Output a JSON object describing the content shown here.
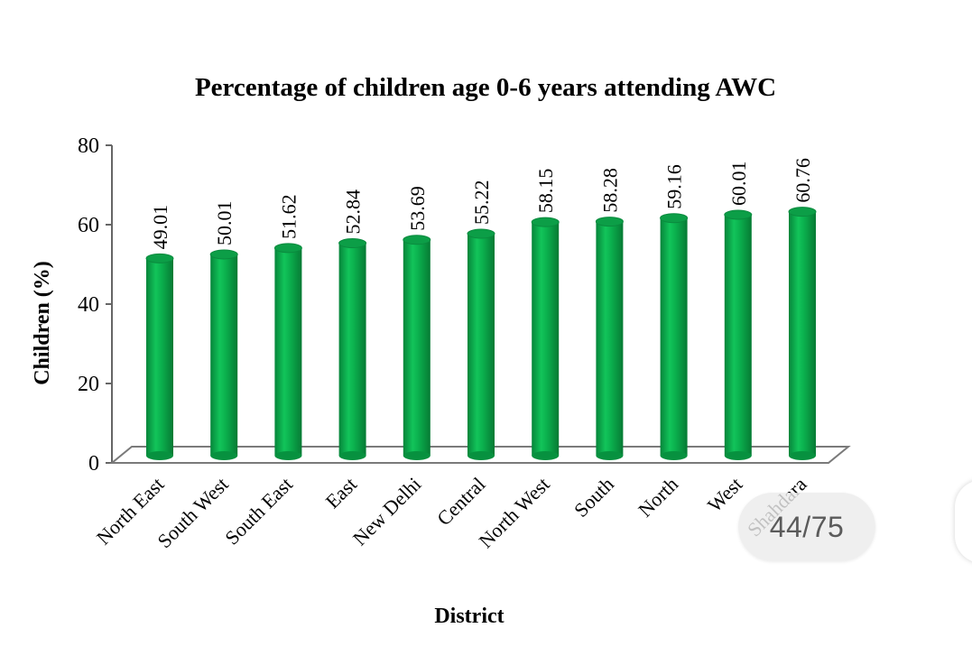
{
  "chart_data": {
    "type": "bar",
    "title": "Percentage of children age 0-6 years attending AWC",
    "xlabel": "District",
    "ylabel": "Children (%)",
    "categories": [
      "North East",
      "South West",
      "South East",
      "East",
      "New Delhi",
      "Central",
      "North West",
      "South",
      "North",
      "West",
      "Shahdara"
    ],
    "values": [
      49.01,
      50.01,
      51.62,
      52.84,
      53.69,
      55.22,
      58.15,
      58.28,
      59.16,
      60.01,
      60.76
    ],
    "value_labels": [
      "49.01",
      "50.01",
      "51.62",
      "52.84",
      "53.69",
      "55.22",
      "58.15",
      "58.28",
      "59.16",
      "60.01",
      "60.76"
    ],
    "ylim": [
      0,
      80
    ],
    "yticks": [
      "0",
      "20",
      "40",
      "60",
      "80"
    ],
    "bar_color": "#0aa94a",
    "grid": false,
    "legend": "none",
    "style": "3d-cylinder"
  },
  "viewer": {
    "page_indicator": "44/75"
  }
}
